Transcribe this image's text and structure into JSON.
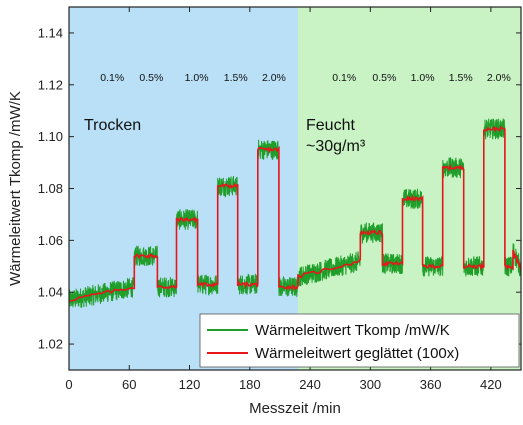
{
  "chart_data": {
    "type": "line",
    "xlabel": "Messzeit /min",
    "ylabel": "Wärmeleitwert Tkomp /mW/K",
    "xlim": [
      0,
      450
    ],
    "ylim": [
      1.01,
      1.15
    ],
    "xticks": [
      0,
      60,
      120,
      180,
      240,
      300,
      360,
      420
    ],
    "yticks": [
      1.02,
      1.04,
      1.06,
      1.08,
      1.1,
      1.12,
      1.14
    ],
    "grid": false,
    "legend_position": "bottom-right",
    "regions": [
      {
        "label": "Trocken",
        "x_start": 0,
        "x_end": 228,
        "color": "#b9e0f7"
      },
      {
        "label": "Feucht\n~30g/m³",
        "x_start": 228,
        "x_end": 450,
        "color": "#c9f3c5"
      }
    ],
    "annotations": [
      {
        "text": "0.1%",
        "x": 43
      },
      {
        "text": "0.5%",
        "x": 82
      },
      {
        "text": "1.0%",
        "x": 127
      },
      {
        "text": "1.5%",
        "x": 166
      },
      {
        "text": "2.0%",
        "x": 204
      },
      {
        "text": "0.1%",
        "x": 274
      },
      {
        "text": "0.5%",
        "x": 314
      },
      {
        "text": "1.0%",
        "x": 352
      },
      {
        "text": "1.5%",
        "x": 390
      },
      {
        "text": "2.0%",
        "x": 428
      }
    ],
    "steps": [
      {
        "x": [
          0,
          65
        ],
        "y": [
          1.037,
          1.042
        ]
      },
      {
        "x": [
          65,
          88
        ],
        "y": [
          1.054,
          1.054
        ]
      },
      {
        "x": [
          88,
          107
        ],
        "y": [
          1.042,
          1.042
        ]
      },
      {
        "x": [
          107,
          128
        ],
        "y": [
          1.068,
          1.068
        ]
      },
      {
        "x": [
          128,
          148
        ],
        "y": [
          1.043,
          1.043
        ]
      },
      {
        "x": [
          148,
          168
        ],
        "y": [
          1.081,
          1.081
        ]
      },
      {
        "x": [
          168,
          188
        ],
        "y": [
          1.043,
          1.043
        ]
      },
      {
        "x": [
          188,
          209
        ],
        "y": [
          1.095,
          1.095
        ]
      },
      {
        "x": [
          209,
          228
        ],
        "y": [
          1.042,
          1.042
        ]
      },
      {
        "x": [
          228,
          290
        ],
        "y": [
          1.046,
          1.052
        ]
      },
      {
        "x": [
          290,
          312
        ],
        "y": [
          1.063,
          1.063
        ]
      },
      {
        "x": [
          312,
          332
        ],
        "y": [
          1.051,
          1.051
        ]
      },
      {
        "x": [
          332,
          352
        ],
        "y": [
          1.076,
          1.076
        ]
      },
      {
        "x": [
          352,
          372
        ],
        "y": [
          1.05,
          1.05
        ]
      },
      {
        "x": [
          372,
          393
        ],
        "y": [
          1.088,
          1.088
        ]
      },
      {
        "x": [
          393,
          413
        ],
        "y": [
          1.05,
          1.05
        ]
      },
      {
        "x": [
          413,
          434
        ],
        "y": [
          1.103,
          1.103
        ]
      },
      {
        "x": [
          434,
          442
        ],
        "y": [
          1.05,
          1.05
        ]
      },
      {
        "x": [
          442,
          450
        ],
        "y": [
          1.056,
          1.049
        ]
      }
    ],
    "series": [
      {
        "name": "Wärmeleitwert Tkomp /mW/K",
        "color": "#1f9e2a",
        "noise_amplitude": 0.004
      },
      {
        "name": "Wärmeleitwert geglättet (100x)",
        "color": "#e8151b"
      }
    ]
  }
}
